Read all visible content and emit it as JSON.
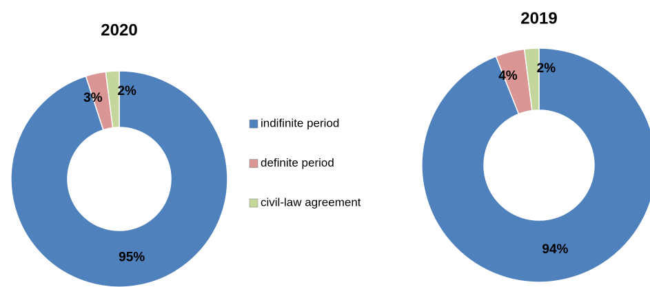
{
  "chart_data": [
    {
      "type": "pie",
      "title": "2020",
      "categories": [
        "indifinite period",
        "definite period",
        "civil-law agreement"
      ],
      "values": [
        95,
        3,
        2
      ],
      "value_labels": [
        "95%",
        "3%",
        "2%"
      ],
      "colors": [
        "#4f81bd",
        "#d99694",
        "#c3d69b"
      ],
      "legend": "center"
    },
    {
      "type": "pie",
      "title": "2019",
      "categories": [
        "indifinite period",
        "definite period",
        "civil-law agreement"
      ],
      "values": [
        94,
        4,
        2
      ],
      "value_labels": [
        "94%",
        "4%",
        "2%"
      ],
      "colors": [
        "#4f81bd",
        "#d99694",
        "#c3d69b"
      ]
    }
  ]
}
